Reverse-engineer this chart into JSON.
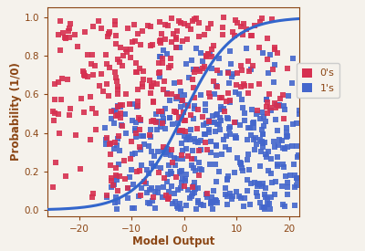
{
  "title": "",
  "xlabel": "Model Output",
  "ylabel": "Probability (1/0)",
  "xlim": [
    -26,
    22
  ],
  "ylim": [
    -0.03,
    1.05
  ],
  "xticks": [
    -20,
    -10,
    0,
    10,
    20
  ],
  "yticks": [
    0,
    0.2,
    0.4,
    0.6,
    0.8,
    1.0
  ],
  "xlabel_color": "#8B4513",
  "ylabel_color": "#8B4513",
  "tick_color": "#8B4513",
  "background_color": "#f5f2ec",
  "axes_color": "#8B4513",
  "sigmoid_color": "#3366cc",
  "red_color": "#d63050",
  "blue_color": "#4466cc",
  "seed": 7,
  "sigmoid_lw": 2.2,
  "marker_size": 16,
  "legend_fontsize": 8,
  "sigmoid_scale": 0.22
}
